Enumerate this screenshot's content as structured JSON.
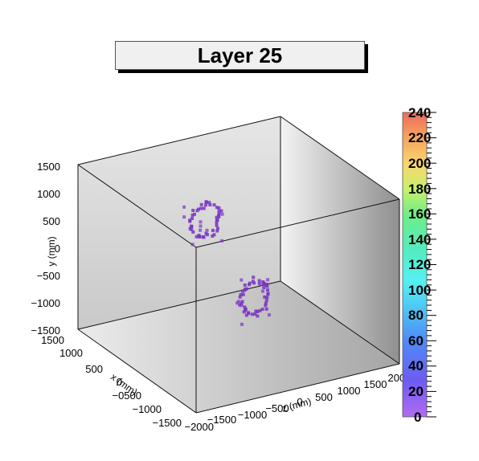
{
  "chart_data": {
    "type": "scatter",
    "subtype": "3d-box",
    "title": "Layer 25",
    "xlabel": "x (mm)",
    "ylabel": "y (mm)",
    "zlabel": "z (mm)",
    "xlim": [
      -2000,
      1500
    ],
    "ylim": [
      -1500,
      1500
    ],
    "zlim": [
      -2000,
      2000
    ],
    "x_ticks": [
      "1500",
      "1000",
      "500",
      "0",
      "−0500",
      "−1000",
      "−1500",
      "−2000"
    ],
    "y_ticks": [
      "1500",
      "1000",
      "500",
      "0",
      "−500",
      "−1000",
      "−1500"
    ],
    "z_ticks": [
      "−1500",
      "−1000",
      "−500",
      "0",
      "500",
      "1000",
      "1500",
      "2000"
    ],
    "colorbar": {
      "min": 0,
      "max": 240,
      "ticks": [
        "240",
        "220",
        "200",
        "180",
        "160",
        "140",
        "120",
        "100",
        "80",
        "60",
        "40",
        "20",
        "0"
      ]
    },
    "point_color": "#7a35c2",
    "series": [
      {
        "ring_center": [
          -1400,
          0,
          -450
        ],
        "ring_radius": 300,
        "points": 46
      },
      {
        "ring_center": [
          1400,
          0,
          450
        ],
        "ring_radius": 300,
        "points": 46
      }
    ]
  }
}
